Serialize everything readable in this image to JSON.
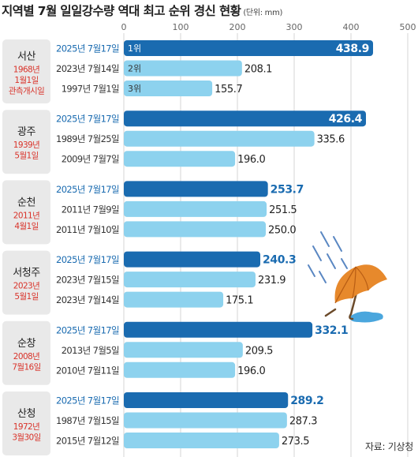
{
  "title": "지역별 7월 일일강수량 역대 최고 순위 경신 현황",
  "unit": "(단위: mm)",
  "source": "자료: 기상청",
  "colors": {
    "highlight_bar": "#1a6bb0",
    "normal_bar": "#8dd2ee",
    "highlight_text": "#1a6bb0",
    "region_box": "#e9e9e9",
    "established": "#d9342b",
    "grid": "#d6d6d6"
  },
  "chart_data": {
    "type": "bar",
    "orientation": "horizontal",
    "xlim": [
      0,
      500
    ],
    "ticks": [
      0,
      100,
      200,
      300,
      400,
      500
    ],
    "grid": true,
    "groups": [
      {
        "region": "서산",
        "established": "1968년\n1월1일\n관측개시일",
        "bars": [
          {
            "date": "2025년 7월17일",
            "value": 438.9,
            "label": "438.9",
            "rank": "1위",
            "highlight": true
          },
          {
            "date": "2023년 7월14일",
            "value": 208.1,
            "label": "208.1",
            "rank": "2위",
            "highlight": false
          },
          {
            "date": "1997년 7월1일",
            "value": 155.7,
            "label": "155.7",
            "rank": "3위",
            "highlight": false
          }
        ]
      },
      {
        "region": "광주",
        "established": "1939년\n5월1일",
        "bars": [
          {
            "date": "2025년 7월17일",
            "value": 426.4,
            "label": "426.4",
            "highlight": true
          },
          {
            "date": "1989년 7월25일",
            "value": 335.6,
            "label": "335.6",
            "highlight": false
          },
          {
            "date": "2009년 7월7일",
            "value": 196.0,
            "label": "196.0",
            "highlight": false
          }
        ]
      },
      {
        "region": "순천",
        "established": "2011년\n4월1일",
        "bars": [
          {
            "date": "2025년 7월17일",
            "value": 253.7,
            "label": "253.7",
            "highlight": true
          },
          {
            "date": "2011년 7월9일",
            "value": 251.5,
            "label": "251.5",
            "highlight": false
          },
          {
            "date": "2011년 7월10일",
            "value": 250.0,
            "label": "250.0",
            "highlight": false
          }
        ]
      },
      {
        "region": "서청주",
        "established": "2023년\n5월1일",
        "bars": [
          {
            "date": "2025년 7월17일",
            "value": 240.3,
            "label": "240.3",
            "highlight": true
          },
          {
            "date": "2023년 7월15일",
            "value": 231.9,
            "label": "231.9",
            "highlight": false
          },
          {
            "date": "2023년 7월14일",
            "value": 175.1,
            "label": "175.1",
            "highlight": false
          }
        ]
      },
      {
        "region": "순창",
        "established": "2008년\n7월16일",
        "bars": [
          {
            "date": "2025년 7월17일",
            "value": 332.1,
            "label": "332.1",
            "highlight": true
          },
          {
            "date": "2013년 7월5일",
            "value": 209.5,
            "label": "209.5",
            "highlight": false
          },
          {
            "date": "2010년 7월11일",
            "value": 196.0,
            "label": "196.0",
            "highlight": false
          }
        ]
      },
      {
        "region": "산청",
        "established": "1972년\n3월30일",
        "bars": [
          {
            "date": "2025년 7월17일",
            "value": 289.2,
            "label": "289.2",
            "highlight": true
          },
          {
            "date": "1987년 7월15일",
            "value": 287.3,
            "label": "287.3",
            "highlight": false
          },
          {
            "date": "2015년 7월12일",
            "value": 273.5,
            "label": "273.5",
            "highlight": false
          }
        ]
      }
    ]
  }
}
